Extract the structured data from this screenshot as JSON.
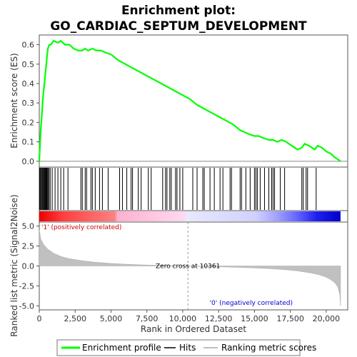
{
  "chart_data": {
    "type": "line",
    "title_line1": "Enrichment plot:",
    "title_line2": "GO_CARDIAC_SEPTUM_DEVELOPMENT",
    "xlabel": "Rank in Ordered Dataset",
    "ylabel_top": "Enrichment score (ES)",
    "ylabel_bottom": "Ranked list metric (Signal2Noise)",
    "xlim": [
      0,
      21500
    ],
    "es_ylim": [
      -0.03,
      0.65
    ],
    "metric_ylim": [
      -5.5,
      5.5
    ],
    "x_ticks": [
      0,
      2500,
      5000,
      7500,
      10000,
      12500,
      15000,
      17500,
      20000
    ],
    "x_tick_labels": [
      "0",
      "2,500",
      "5,000",
      "7,500",
      "10,000",
      "12,500",
      "15,000",
      "17,500",
      "20,000"
    ],
    "es_ticks": [
      0.0,
      0.1,
      0.2,
      0.3,
      0.4,
      0.5,
      0.6
    ],
    "es_tick_labels": [
      "0.0",
      "0.1",
      "0.2",
      "0.3",
      "0.4",
      "0.5",
      "0.6"
    ],
    "metric_ticks": [
      5.0,
      2.5,
      0.0,
      -2.5,
      -5.0
    ],
    "metric_tick_labels": [
      "5.0",
      "2.5",
      "0.0",
      "-2.5",
      "-5.0"
    ],
    "es_profile": {
      "x": [
        0,
        60,
        120,
        180,
        240,
        300,
        360,
        420,
        480,
        540,
        600,
        700,
        800,
        1000,
        1300,
        1500,
        1800,
        2100,
        2400,
        2700,
        3000,
        3200,
        3400,
        3700,
        4000,
        4300,
        4600,
        5000,
        5500,
        6000,
        6500,
        7000,
        7500,
        8000,
        8500,
        9000,
        9500,
        10000,
        10500,
        11000,
        11500,
        12000,
        12500,
        13000,
        13500,
        14000,
        14300,
        14600,
        15000,
        15300,
        15600,
        16000,
        16300,
        16600,
        16900,
        17200,
        17600,
        18000,
        18300,
        18500,
        18800,
        19000,
        19200,
        19400,
        19700,
        20000,
        20300,
        20600,
        21000
      ],
      "y": [
        0.0,
        0.1,
        0.18,
        0.24,
        0.31,
        0.36,
        0.4,
        0.45,
        0.49,
        0.54,
        0.58,
        0.6,
        0.6,
        0.62,
        0.61,
        0.62,
        0.6,
        0.6,
        0.58,
        0.57,
        0.57,
        0.58,
        0.57,
        0.58,
        0.57,
        0.57,
        0.56,
        0.55,
        0.52,
        0.5,
        0.48,
        0.46,
        0.44,
        0.42,
        0.4,
        0.38,
        0.36,
        0.34,
        0.32,
        0.29,
        0.27,
        0.25,
        0.23,
        0.21,
        0.19,
        0.16,
        0.15,
        0.14,
        0.13,
        0.13,
        0.12,
        0.11,
        0.11,
        0.1,
        0.11,
        0.1,
        0.08,
        0.06,
        0.07,
        0.09,
        0.08,
        0.07,
        0.06,
        0.08,
        0.07,
        0.05,
        0.04,
        0.02,
        0.0
      ]
    },
    "hits": [
      30,
      80,
      140,
      190,
      240,
      290,
      340,
      380,
      420,
      470,
      520,
      560,
      610,
      680,
      760,
      900,
      1100,
      1300,
      1500,
      1700,
      2000,
      2900,
      3000,
      3200,
      3300,
      3600,
      3700,
      3900,
      4200,
      4400,
      4800,
      5600,
      5800,
      6100,
      6400,
      6500,
      6900,
      7100,
      7600,
      7800,
      8600,
      8800,
      8900,
      9100,
      9200,
      9500,
      9600,
      9800,
      10000,
      10700,
      11000,
      11400,
      11500,
      11900,
      12200,
      12600,
      12800,
      13300,
      13400,
      14000,
      14100,
      14400,
      14700,
      15000,
      15100,
      15200,
      15400,
      15700,
      16000,
      16200,
      16300,
      16400,
      16800,
      17100,
      18300,
      18400,
      18600,
      18700,
      19300
    ],
    "metric": {
      "x": [
        0,
        100,
        300,
        600,
        1000,
        1500,
        2000,
        3000,
        4000,
        5000,
        6000,
        7000,
        8000,
        9000,
        10361,
        11000,
        12000,
        13000,
        14000,
        15000,
        16000,
        17000,
        18000,
        19000,
        19500,
        20000,
        20300,
        20600,
        20800,
        20950,
        21000
      ],
      "y": [
        4.5,
        3.4,
        2.7,
        2.1,
        1.6,
        1.2,
        0.95,
        0.65,
        0.45,
        0.32,
        0.22,
        0.15,
        0.09,
        0.05,
        0.0,
        -0.04,
        -0.08,
        -0.13,
        -0.18,
        -0.25,
        -0.33,
        -0.45,
        -0.62,
        -0.9,
        -1.1,
        -1.4,
        -1.7,
        -2.1,
        -2.6,
        -3.6,
        -5.0
      ]
    },
    "zero_cross_label": "Zero cross at 10361",
    "zero_cross_x": 10361,
    "pos_label": "'1' (positively correlated)",
    "neg_label": "'0' (negatively correlated)",
    "legend": [
      "Enrichment profile",
      "Hits",
      "Ranking metric scores"
    ],
    "colors": {
      "profile": "#00ff00",
      "hits": "#000000",
      "metric_fill": "#c0c0c0",
      "pos_label": "#cc0000",
      "neg_label": "#0000cc"
    }
  }
}
